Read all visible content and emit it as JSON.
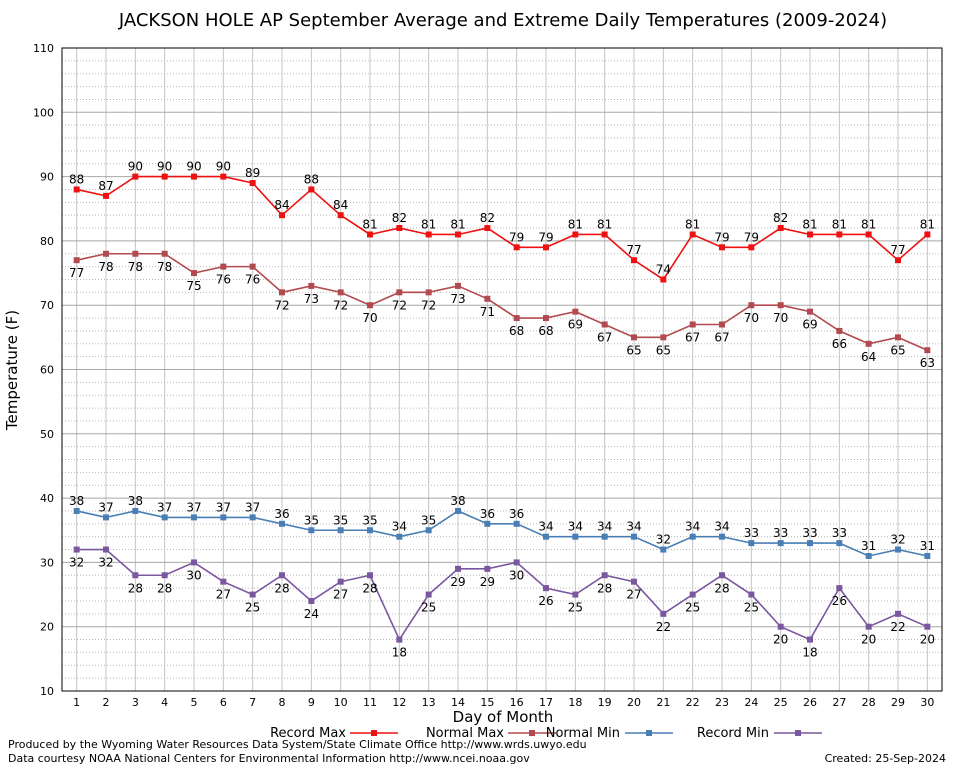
{
  "chart_data": {
    "type": "line",
    "title": "JACKSON HOLE AP September Average and Extreme Daily Temperatures (2009-2024)",
    "xlabel": "Day of Month",
    "ylabel": "Temperature (F)",
    "ylim": [
      10,
      110
    ],
    "yticks": [
      10,
      20,
      30,
      40,
      50,
      60,
      70,
      80,
      90,
      100,
      110
    ],
    "x": [
      1,
      2,
      3,
      4,
      5,
      6,
      7,
      8,
      9,
      10,
      11,
      12,
      13,
      14,
      15,
      16,
      17,
      18,
      19,
      20,
      21,
      22,
      23,
      24,
      25,
      26,
      27,
      28,
      29,
      30
    ],
    "grid": true,
    "legend_position": "bottom",
    "series": [
      {
        "name": "Record Max",
        "color": "#ee1111",
        "values": [
          88,
          87,
          90,
          90,
          90,
          90,
          89,
          84,
          88,
          84,
          81,
          82,
          81,
          81,
          82,
          79,
          79,
          81,
          81,
          77,
          74,
          81,
          79,
          79,
          82,
          81,
          81,
          81,
          77,
          81
        ]
      },
      {
        "name": "Normal Max",
        "color": "#b24a4f",
        "values": [
          77,
          78,
          78,
          78,
          75,
          76,
          76,
          72,
          73,
          72,
          70,
          72,
          72,
          73,
          71,
          68,
          68,
          69,
          67,
          65,
          65,
          67,
          67,
          70,
          70,
          69,
          66,
          64,
          65,
          63
        ]
      },
      {
        "name": "Normal Min",
        "color": "#4a7fb5",
        "values": [
          38,
          37,
          38,
          37,
          37,
          37,
          37,
          36,
          35,
          35,
          35,
          34,
          35,
          38,
          36,
          36,
          34,
          34,
          34,
          34,
          32,
          34,
          34,
          33,
          33,
          33,
          33,
          31,
          32,
          31
        ]
      },
      {
        "name": "Record Min",
        "color": "#7b57a0",
        "values": [
          32,
          32,
          28,
          28,
          30,
          27,
          25,
          28,
          24,
          27,
          28,
          18,
          25,
          29,
          29,
          30,
          26,
          25,
          28,
          27,
          22,
          25,
          28,
          25,
          20,
          18,
          26,
          20,
          22,
          20
        ]
      }
    ]
  },
  "footer": {
    "line1": "Produced by the Wyoming Water Resources Data System/State Climate Office http://www.wrds.uwyo.edu",
    "line2": "Data courtesy NOAA National Centers for Environmental Information http://www.ncei.noaa.gov",
    "created": "Created:  25-Sep-2024"
  }
}
